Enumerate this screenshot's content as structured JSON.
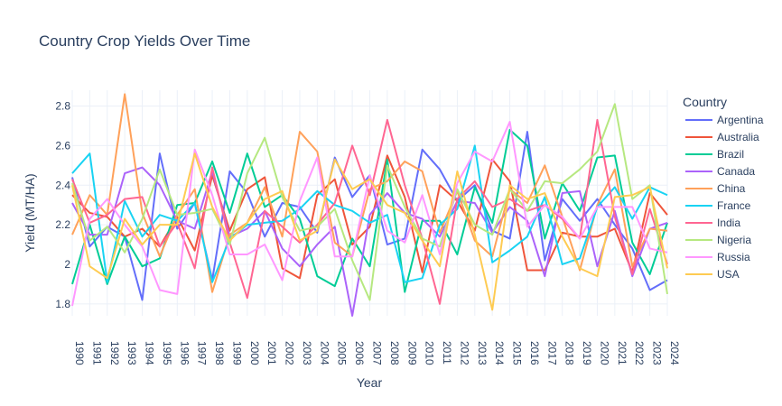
{
  "chart_data": {
    "type": "line",
    "title": "Country Crop Yields Over Time",
    "xlabel": "Year",
    "ylabel": "Yield (MT/HA)",
    "legend_title": "Country",
    "legend_position": "right",
    "grid": true,
    "ylim": [
      1.74,
      2.88
    ],
    "yticks": [
      1.8,
      2,
      2.2,
      2.4,
      2.6,
      2.8
    ],
    "ytick_labels": [
      "1.8",
      "2",
      "2.2",
      "2.4",
      "2.6",
      "2.8"
    ],
    "x": [
      "1990",
      "1991",
      "1992",
      "1993",
      "1994",
      "1995",
      "1996",
      "1997",
      "1998",
      "1999",
      "2000",
      "2001",
      "2002",
      "2003",
      "2004",
      "2005",
      "2006",
      "2007",
      "2008",
      "2009",
      "2010",
      "2011",
      "2012",
      "2013",
      "2014",
      "2015",
      "2016",
      "2017",
      "2018",
      "2019",
      "2020",
      "2021",
      "2022",
      "2023",
      "2024"
    ],
    "series": [
      {
        "name": "Argentina",
        "color": "#636efa",
        "values": [
          2.44,
          2.09,
          2.19,
          2.14,
          1.82,
          2.56,
          2.18,
          2.31,
          1.92,
          2.47,
          2.36,
          2.14,
          2.31,
          2.29,
          2.16,
          2.54,
          2.34,
          2.45,
          2.1,
          2.13,
          2.58,
          2.48,
          2.32,
          2.4,
          2.17,
          2.13,
          2.67,
          2.02,
          2.33,
          2.22,
          2.33,
          2.2,
          2.08,
          1.87,
          1.92
        ]
      },
      {
        "name": "Australia",
        "color": "#EF553B",
        "values": [
          2.35,
          2.26,
          2.24,
          2.14,
          2.18,
          2.09,
          2.24,
          2.07,
          2.45,
          2.17,
          2.38,
          2.44,
          1.98,
          1.93,
          2.35,
          2.43,
          2.1,
          2.19,
          2.55,
          2.34,
          1.96,
          2.4,
          2.32,
          2.17,
          2.53,
          2.42,
          1.97,
          1.97,
          2.16,
          2.14,
          2.14,
          2.18,
          1.96,
          2.36,
          2.25
        ]
      },
      {
        "name": "Brazil",
        "color": "#00cc96",
        "values": [
          1.9,
          2.2,
          1.9,
          2.14,
          1.99,
          2.03,
          2.3,
          2.31,
          2.52,
          2.26,
          2.56,
          2.29,
          2.35,
          2.23,
          1.94,
          1.89,
          2.13,
          1.99,
          2.53,
          1.86,
          2.22,
          2.22,
          2.05,
          2.39,
          2.21,
          2.68,
          2.6,
          2.13,
          2.41,
          2.27,
          2.54,
          2.55,
          2.11,
          1.95,
          2.21
        ]
      },
      {
        "name": "Canada",
        "color": "#ab63fa",
        "values": [
          2.31,
          2.15,
          2.15,
          2.46,
          2.49,
          2.4,
          2.22,
          2.18,
          2.47,
          2.14,
          2.18,
          2.27,
          2.08,
          1.99,
          2.1,
          2.19,
          1.74,
          2.25,
          2.36,
          2.26,
          2.23,
          2.14,
          2.32,
          2.31,
          2.16,
          2.29,
          2.22,
          1.94,
          2.36,
          2.37,
          1.99,
          2.27,
          1.94,
          2.18,
          2.21
        ]
      },
      {
        "name": "China",
        "color": "#FFA15A",
        "values": [
          2.15,
          2.35,
          2.25,
          2.86,
          2.26,
          2.04,
          2.25,
          2.38,
          1.86,
          2.15,
          2.21,
          2.39,
          2.14,
          2.67,
          2.57,
          2.11,
          2.04,
          2.38,
          2.42,
          2.52,
          2.47,
          2.16,
          2.37,
          2.12,
          2.04,
          2.38,
          2.31,
          2.5,
          2.24,
          1.97,
          2.3,
          2.48,
          1.99,
          2.18,
          2.17
        ]
      },
      {
        "name": "France",
        "color": "#19d3f3",
        "values": [
          2.46,
          2.56,
          1.91,
          2.32,
          2.14,
          2.25,
          2.22,
          2.31,
          1.91,
          2.13,
          2.2,
          2.21,
          2.22,
          2.28,
          2.37,
          2.3,
          2.27,
          2.21,
          2.25,
          1.91,
          1.93,
          2.2,
          2.28,
          2.6,
          2.01,
          2.07,
          2.14,
          2.34,
          2.0,
          2.03,
          2.29,
          2.39,
          2.23,
          2.39,
          2.35
        ]
      },
      {
        "name": "India",
        "color": "#FF6692",
        "values": [
          2.43,
          2.21,
          2.25,
          2.33,
          2.34,
          2.09,
          2.21,
          1.98,
          2.49,
          2.11,
          1.83,
          2.27,
          2.19,
          2.11,
          2.2,
          2.31,
          2.6,
          2.35,
          2.73,
          2.4,
          2.13,
          1.8,
          2.33,
          2.42,
          2.29,
          2.33,
          2.27,
          2.3,
          2.23,
          2.13,
          2.73,
          2.24,
          1.95,
          2.28,
          2.0
        ]
      },
      {
        "name": "Nigeria",
        "color": "#B6E880",
        "values": [
          2.41,
          2.12,
          2.19,
          2.06,
          2.23,
          2.48,
          2.25,
          2.26,
          2.28,
          2.1,
          2.46,
          2.64,
          2.34,
          2.17,
          2.19,
          2.28,
          2.02,
          1.82,
          2.5,
          2.29,
          2.13,
          2.09,
          2.38,
          2.2,
          2.15,
          2.38,
          2.27,
          2.42,
          2.41,
          2.48,
          2.57,
          2.81,
          2.33,
          2.4,
          1.85
        ]
      },
      {
        "name": "Russia",
        "color": "#FF97FF",
        "values": [
          1.79,
          2.23,
          2.33,
          2.2,
          2.09,
          1.87,
          1.85,
          2.58,
          2.35,
          2.05,
          2.05,
          2.1,
          1.92,
          2.32,
          2.54,
          2.04,
          2.04,
          2.45,
          2.17,
          2.11,
          2.35,
          2.05,
          2.41,
          2.57,
          2.52,
          2.72,
          2.19,
          2.3,
          2.24,
          2.13,
          2.29,
          2.29,
          2.29,
          2.08,
          2.06
        ]
      },
      {
        "name": "USA",
        "color": "#FECB52",
        "values": [
          2.4,
          1.99,
          1.93,
          2.23,
          2.1,
          2.2,
          2.2,
          2.56,
          2.29,
          2.12,
          2.21,
          2.33,
          2.37,
          2.12,
          2.17,
          2.53,
          2.38,
          2.43,
          2.3,
          2.26,
          2.12,
          1.99,
          2.47,
          2.15,
          1.77,
          2.4,
          2.33,
          2.36,
          2.14,
          1.98,
          1.94,
          2.34,
          2.35,
          2.39,
          1.98
        ]
      }
    ]
  }
}
